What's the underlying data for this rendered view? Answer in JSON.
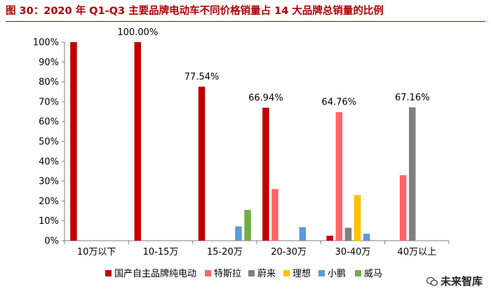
{
  "title": "图 30：2020 年 Q1-Q3 主要品牌电动车不同价格销量占 14 大品牌总销量的比例",
  "watermark": "未来智库",
  "chart_data": {
    "type": "bar",
    "categories": [
      "10万以下",
      "10-15万",
      "15-20万",
      "20-30万",
      "30-40万",
      "40万以上"
    ],
    "ylim": [
      0,
      100
    ],
    "yticks": [
      "0%",
      "10%",
      "20%",
      "30%",
      "40%",
      "50%",
      "60%",
      "70%",
      "80%",
      "90%",
      "100%"
    ],
    "grid": false,
    "legend_position": "bottom",
    "series": [
      {
        "name": "国产自主品牌纯电动",
        "color": "#c00000",
        "values": [
          100,
          100,
          77.54,
          66.94,
          2.5,
          0
        ]
      },
      {
        "name": "特斯拉",
        "color": "#ff6666",
        "values": [
          0,
          0,
          0,
          26,
          64.76,
          33
        ]
      },
      {
        "name": "蔚来",
        "color": "#808080",
        "values": [
          0,
          0,
          0,
          0,
          6.5,
          67.16
        ]
      },
      {
        "name": "理想",
        "color": "#ffc000",
        "values": [
          0,
          0,
          0,
          0,
          23,
          0
        ]
      },
      {
        "name": "小鹏",
        "color": "#5b9bd5",
        "values": [
          0,
          0,
          7.2,
          6.8,
          3.5,
          0
        ]
      },
      {
        "name": "威马",
        "color": "#70ad47",
        "values": [
          0,
          0,
          15.5,
          0,
          0,
          0
        ]
      }
    ],
    "annotations": [
      {
        "category": "10-15万",
        "text": "100.00%"
      },
      {
        "category": "15-20万",
        "text": "77.54%"
      },
      {
        "category": "20-30万",
        "text": "66.94%"
      },
      {
        "category": "30-40万",
        "text": "64.76%"
      },
      {
        "category": "40万以上",
        "text": "67.16%"
      }
    ]
  }
}
